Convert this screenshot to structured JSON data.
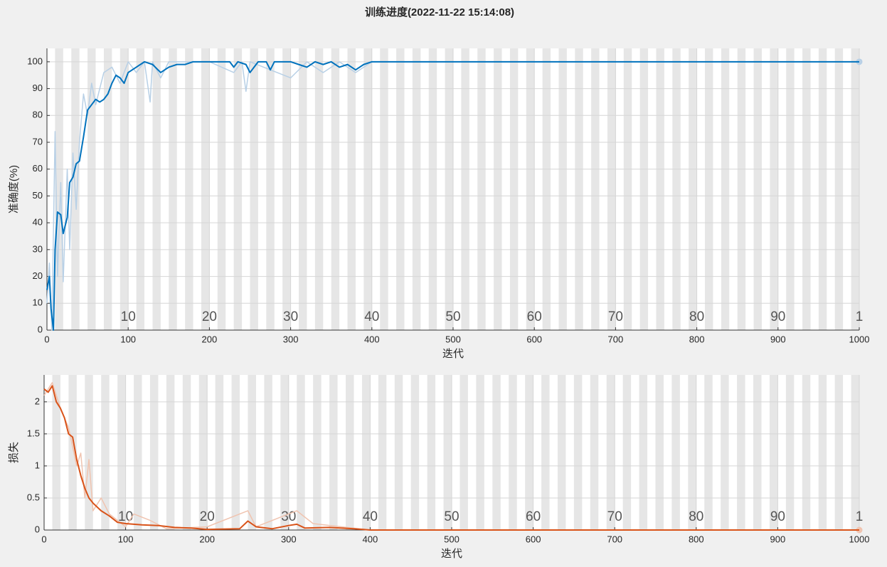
{
  "title": "训练进度(2022-11-22 15:14:08)",
  "chart_data": [
    {
      "type": "line",
      "y_label": "准确度(%)",
      "x_label": "迭代",
      "xlim": [
        0,
        1000
      ],
      "ylim": [
        0,
        105
      ],
      "xticks": [
        0,
        100,
        200,
        300,
        400,
        500,
        600,
        700,
        800,
        900,
        1000
      ],
      "yticks": [
        0,
        10,
        20,
        30,
        40,
        50,
        60,
        70,
        80,
        90,
        100
      ],
      "epoch_ticks": [
        {
          "value": 100,
          "label": "10"
        },
        {
          "value": 200,
          "label": "20"
        },
        {
          "value": 300,
          "label": "30"
        },
        {
          "value": 400,
          "label": "40"
        },
        {
          "value": 500,
          "label": "50"
        },
        {
          "value": 600,
          "label": "60"
        },
        {
          "value": 700,
          "label": "70"
        },
        {
          "value": 800,
          "label": "80"
        },
        {
          "value": 900,
          "label": "90"
        },
        {
          "value": 1000,
          "label": "1"
        }
      ],
      "grid": true,
      "series": [
        {
          "color": "#b8d0e6",
          "width": 1.5,
          "x": [
            0,
            3,
            6,
            10,
            13,
            17,
            20,
            25,
            28,
            32,
            36,
            40,
            45,
            50,
            55,
            60,
            70,
            80,
            90,
            100,
            110,
            120,
            127,
            130,
            140,
            150,
            200,
            230,
            240,
            245,
            250,
            300,
            320,
            340,
            360,
            380,
            400,
            1000
          ],
          "values": [
            10,
            25,
            0,
            74,
            20,
            55,
            18,
            60,
            30,
            66,
            45,
            70,
            88,
            80,
            92,
            84,
            96,
            98,
            92,
            100,
            96,
            100,
            85,
            100,
            94,
            100,
            100,
            96,
            100,
            89,
            100,
            94,
            100,
            96,
            100,
            96,
            100,
            100
          ]
        },
        {
          "color": "#0072bd",
          "width": 2,
          "x": [
            0,
            3,
            5,
            8,
            10,
            13,
            17,
            20,
            25,
            28,
            32,
            36,
            40,
            45,
            50,
            55,
            60,
            65,
            70,
            75,
            80,
            85,
            90,
            95,
            100,
            110,
            120,
            130,
            140,
            150,
            160,
            170,
            180,
            190,
            225,
            230,
            235,
            245,
            250,
            255,
            260,
            270,
            275,
            280,
            300,
            310,
            320,
            330,
            340,
            350,
            360,
            370,
            380,
            390,
            400,
            1000
          ],
          "values": [
            15,
            20,
            8,
            0,
            30,
            44,
            43,
            36,
            42,
            55,
            57,
            62,
            63,
            72,
            82,
            84,
            86,
            85,
            86,
            88,
            92,
            95,
            94,
            92,
            96,
            98,
            100,
            99,
            96,
            98,
            99,
            99,
            100,
            100,
            100,
            98,
            100,
            99,
            96,
            98,
            100,
            100,
            97,
            100,
            100,
            99,
            98,
            100,
            99,
            100,
            98,
            99,
            97,
            99,
            100,
            100
          ]
        }
      ]
    },
    {
      "type": "line",
      "y_label": "损失",
      "x_label": "迭代",
      "xlim": [
        0,
        1000
      ],
      "ylim": [
        0,
        2.42
      ],
      "xticks": [
        0,
        100,
        200,
        300,
        400,
        500,
        600,
        700,
        800,
        900,
        1000
      ],
      "yticks": [
        0,
        0.5,
        1,
        1.5,
        2
      ],
      "epoch_ticks": [
        {
          "value": 100,
          "label": "10"
        },
        {
          "value": 200,
          "label": "20"
        },
        {
          "value": 300,
          "label": "30"
        },
        {
          "value": 400,
          "label": "40"
        },
        {
          "value": 500,
          "label": "50"
        },
        {
          "value": 600,
          "label": "60"
        },
        {
          "value": 700,
          "label": "70"
        },
        {
          "value": 800,
          "label": "80"
        },
        {
          "value": 900,
          "label": "90"
        },
        {
          "value": 1000,
          "label": "1"
        }
      ],
      "grid": true,
      "series": [
        {
          "color": "#f0c4b0",
          "width": 1.5,
          "x": [
            0,
            10,
            20,
            30,
            40,
            45,
            50,
            55,
            60,
            70,
            80,
            100,
            110,
            130,
            150,
            200,
            250,
            260,
            310,
            330,
            400,
            1000
          ],
          "values": [
            2.1,
            2.3,
            1.9,
            1.6,
            1.0,
            1.2,
            0.5,
            1.1,
            0.3,
            0.5,
            0.25,
            0.05,
            0.25,
            0.15,
            0.02,
            0.05,
            0.3,
            0.05,
            0.3,
            0.1,
            0,
            0
          ]
        },
        {
          "color": "#d95319",
          "width": 2,
          "x": [
            0,
            5,
            10,
            15,
            20,
            25,
            30,
            35,
            40,
            45,
            50,
            55,
            60,
            70,
            80,
            90,
            100,
            120,
            140,
            160,
            180,
            200,
            240,
            250,
            260,
            280,
            300,
            310,
            320,
            350,
            380,
            400,
            1000
          ],
          "values": [
            2.2,
            2.15,
            2.25,
            2.0,
            1.9,
            1.75,
            1.5,
            1.45,
            1.1,
            0.85,
            0.65,
            0.5,
            0.42,
            0.3,
            0.22,
            0.12,
            0.1,
            0.08,
            0.07,
            0.04,
            0.03,
            0.01,
            0.02,
            0.14,
            0.05,
            0.02,
            0.07,
            0.09,
            0.03,
            0.04,
            0.02,
            0,
            0
          ]
        }
      ]
    }
  ]
}
